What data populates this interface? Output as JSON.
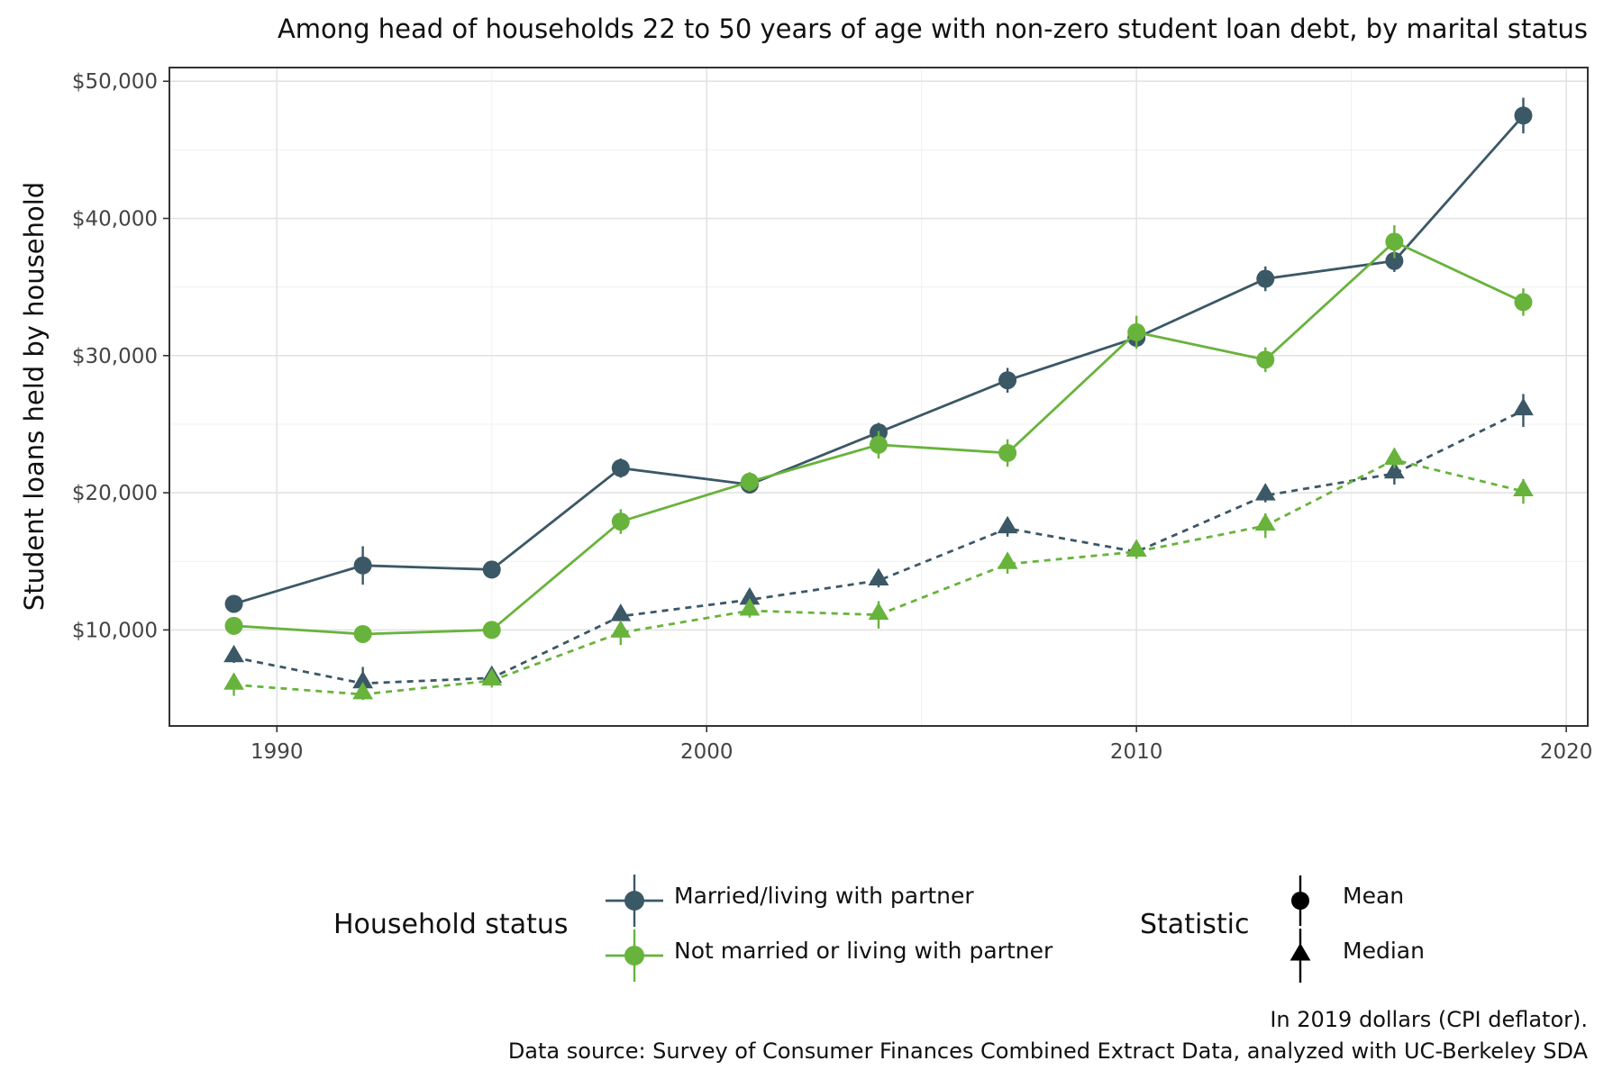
{
  "chart_data": {
    "type": "line",
    "title": "Among head of households 22 to 50 years of age with non-zero student loan debt, by marital status",
    "ylabel": "Student loans held by household",
    "xlabel": "",
    "x": [
      1989,
      1992,
      1995,
      1998,
      2001,
      2004,
      2007,
      2010,
      2013,
      2016,
      2019
    ],
    "xlim": [
      1987.5,
      2020.5
    ],
    "ylim": [
      3000,
      51000
    ],
    "x_ticks": [
      1990,
      2000,
      2010,
      2020
    ],
    "x_tick_labels": [
      "1990",
      "2000",
      "2010",
      "2020"
    ],
    "y_ticks": [
      10000,
      20000,
      30000,
      40000,
      50000
    ],
    "y_tick_labels": [
      "$10,000",
      "$20,000",
      "$30,000",
      "$40,000",
      "$50,000"
    ],
    "grid": true,
    "legend_position": "bottom",
    "series": [
      {
        "name": "Married/living with partner",
        "statistic": "Mean",
        "color": "#3b5866",
        "line": "solid",
        "marker": "circle",
        "values": [
          11900,
          14700,
          14400,
          21800,
          20600,
          24400,
          28200,
          31300,
          35600,
          36900,
          47500
        ],
        "err": [
          400,
          1400,
          500,
          700,
          500,
          700,
          900,
          700,
          900,
          800,
          1300
        ]
      },
      {
        "name": "Not married or living with partner",
        "statistic": "Mean",
        "color": "#68b33c",
        "line": "solid",
        "marker": "circle",
        "values": [
          10300,
          9700,
          10000,
          17900,
          20800,
          23500,
          22900,
          31700,
          29700,
          38300,
          33900
        ],
        "err": [
          500,
          400,
          400,
          900,
          700,
          1000,
          1000,
          1200,
          900,
          1200,
          1000
        ]
      },
      {
        "name": "Married/living with partner",
        "statistic": "Median",
        "color": "#3b5866",
        "line": "dashed",
        "marker": "triangle",
        "values": [
          8000,
          6100,
          6500,
          11000,
          12200,
          13600,
          17400,
          15700,
          19800,
          21400,
          26000
        ],
        "err": [
          400,
          1200,
          400,
          500,
          600,
          500,
          600,
          500,
          500,
          800,
          1200
        ]
      },
      {
        "name": "Not married or living with partner",
        "statistic": "Median",
        "color": "#68b33c",
        "line": "dashed",
        "marker": "triangle",
        "values": [
          6000,
          5300,
          6300,
          9800,
          11400,
          11100,
          14800,
          15700,
          17600,
          22400,
          20100
        ],
        "err": [
          800,
          400,
          500,
          900,
          500,
          1000,
          700,
          500,
          900,
          600,
          900
        ]
      }
    ]
  },
  "legend": {
    "household_title": "Household status",
    "household_items": [
      {
        "label": "Married/living with partner",
        "color": "#3b5866"
      },
      {
        "label": "Not married or living with partner",
        "color": "#68b33c"
      }
    ],
    "statistic_title": "Statistic",
    "statistic_items": [
      {
        "label": "Mean",
        "marker": "circle"
      },
      {
        "label": "Median",
        "marker": "triangle"
      }
    ]
  },
  "caption": {
    "line1": "In 2019 dollars (CPI deflator).",
    "line2": "Data source: Survey of Consumer Finances Combined Extract Data, analyzed with UC-Berkeley SDA"
  }
}
